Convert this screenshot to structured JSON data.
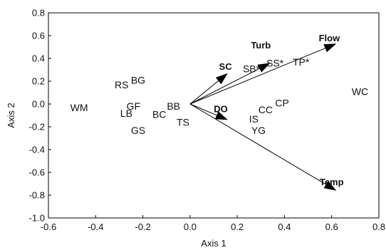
{
  "chart_data": {
    "type": "scatter",
    "title": "",
    "xlabel": "Axis 1",
    "ylabel": "Axis 2",
    "xlim": [
      -0.6,
      0.8
    ],
    "ylim": [
      -1.0,
      0.8
    ],
    "xticks": [
      "-0.6",
      "-0.4",
      "-0.2",
      "0.0",
      "0.2",
      "0.4",
      "0.6",
      "0.8"
    ],
    "yticks": [
      "-1.0",
      "-0.8",
      "-0.6",
      "-0.4",
      "-0.2",
      "0.0",
      "0.2",
      "0.4",
      "0.6",
      "0.8"
    ],
    "grid": false,
    "reference_line": {
      "y": 0.8,
      "style": "dashed"
    },
    "points": [
      {
        "label": "WM",
        "x": -0.47,
        "y": -0.03
      },
      {
        "label": "RS",
        "x": -0.29,
        "y": 0.17
      },
      {
        "label": "BG",
        "x": -0.22,
        "y": 0.21
      },
      {
        "label": "GF",
        "x": -0.24,
        "y": -0.02
      },
      {
        "label": "LB",
        "x": -0.27,
        "y": -0.08
      },
      {
        "label": "GS",
        "x": -0.22,
        "y": -0.23
      },
      {
        "label": "BC",
        "x": -0.13,
        "y": -0.09
      },
      {
        "label": "BB",
        "x": -0.07,
        "y": -0.02
      },
      {
        "label": "TS",
        "x": -0.03,
        "y": -0.16
      },
      {
        "label": "SB*",
        "x": 0.26,
        "y": 0.31
      },
      {
        "label": "SS*",
        "x": 0.36,
        "y": 0.36
      },
      {
        "label": "TP*",
        "x": 0.47,
        "y": 0.37
      },
      {
        "label": "CC",
        "x": 0.32,
        "y": -0.05
      },
      {
        "label": "CP",
        "x": 0.39,
        "y": 0.01
      },
      {
        "label": "IS",
        "x": 0.27,
        "y": -0.13
      },
      {
        "label": "YG",
        "x": 0.29,
        "y": -0.23
      },
      {
        "label": "WC",
        "x": 0.72,
        "y": 0.11
      }
    ],
    "vectors": [
      {
        "label": "SC",
        "x": 0.16,
        "y": 0.27
      },
      {
        "label": "Turb",
        "x": 0.34,
        "y": 0.36
      },
      {
        "label": "Flow",
        "x": 0.62,
        "y": 0.53
      },
      {
        "label": "DO",
        "x": 0.16,
        "y": -0.14
      },
      {
        "label": "Temp",
        "x": 0.62,
        "y": -0.76
      }
    ],
    "vector_labels": {
      "SC": {
        "x": 0.15,
        "y": 0.33
      },
      "Turb": {
        "x": 0.3,
        "y": 0.52
      },
      "Flow": {
        "x": 0.59,
        "y": 0.58
      },
      "DO": {
        "x": 0.13,
        "y": -0.04
      },
      "Temp": {
        "x": 0.6,
        "y": -0.68
      }
    },
    "colors": {
      "axis": "#000000",
      "text": "#111111",
      "vector": "#000000"
    }
  }
}
